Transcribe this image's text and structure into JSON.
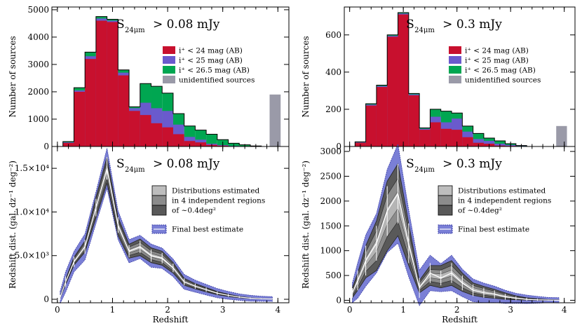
{
  "chart_data": [
    {
      "type": "bar",
      "panel": "top-left",
      "title": "S",
      "title_sub": "24μm",
      "title_rest": "> 0.08 mJy",
      "xlabel": "",
      "ylabel": "Number of sources",
      "xlim": [
        -0.1,
        4.2
      ],
      "ylim": [
        0,
        5100
      ],
      "xticks": [
        0,
        1,
        2,
        3,
        4
      ],
      "yticks": [
        0,
        1000,
        2000,
        3000,
        4000,
        5000
      ],
      "ytick_labels": [
        "0",
        "1000",
        "2000",
        "3000",
        "4000",
        "5000"
      ],
      "bin_edges": [
        0.1,
        0.3,
        0.5,
        0.7,
        0.9,
        1.1,
        1.3,
        1.5,
        1.7,
        1.9,
        2.1,
        2.3,
        2.5,
        2.7,
        2.9,
        3.1,
        3.3,
        3.5,
        3.7
      ],
      "series": [
        {
          "name": "i⁺ < 26.5 mag (AB)",
          "color": "#00a651",
          "values": [
            180,
            2150,
            3450,
            4750,
            4650,
            2800,
            1450,
            2300,
            2200,
            1950,
            1200,
            750,
            600,
            450,
            250,
            120,
            60,
            20
          ]
        },
        {
          "name": "i⁺ < 25 mag (AB)",
          "color": "#6a5acd",
          "values": [
            150,
            2050,
            3300,
            4680,
            4600,
            2700,
            1400,
            1600,
            1400,
            1300,
            800,
            350,
            250,
            100,
            50,
            20,
            10,
            5
          ]
        },
        {
          "name": "i⁺ < 24 mag (AB)",
          "color": "#c8102e",
          "values": [
            130,
            2000,
            3200,
            4600,
            4550,
            2600,
            1300,
            1150,
            850,
            700,
            450,
            200,
            150,
            60,
            30,
            10,
            5,
            0
          ]
        }
      ],
      "unidentified": {
        "name": "unidentified sources",
        "color": "#9a9aa8",
        "x_range": [
          3.85,
          4.05
        ],
        "value": 1900
      },
      "legend_position": "top-right"
    },
    {
      "type": "bar",
      "panel": "top-right",
      "title": "S",
      "title_sub": "24μm",
      "title_rest": "> 0.3 mJy",
      "xlabel": "",
      "ylabel": "Number of sources",
      "xlim": [
        -0.1,
        4.2
      ],
      "ylim": [
        0,
        750
      ],
      "xticks": [
        0,
        1,
        2,
        3,
        4
      ],
      "yticks": [
        0,
        200,
        400,
        600
      ],
      "ytick_labels": [
        "0",
        "200",
        "400",
        "600"
      ],
      "bin_edges": [
        0.1,
        0.3,
        0.5,
        0.7,
        0.9,
        1.1,
        1.3,
        1.5,
        1.7,
        1.9,
        2.1,
        2.3,
        2.5,
        2.7,
        2.9,
        3.1,
        3.3
      ],
      "series": [
        {
          "name": "i⁺ < 26.5 mag (AB)",
          "color": "#00a651",
          "values": [
            25,
            230,
            330,
            600,
            720,
            285,
            100,
            200,
            190,
            180,
            110,
            70,
            45,
            30,
            15,
            5
          ]
        },
        {
          "name": "i⁺ < 25 mag (AB)",
          "color": "#6a5acd",
          "values": [
            22,
            225,
            325,
            595,
            715,
            280,
            95,
            160,
            130,
            150,
            80,
            40,
            30,
            15,
            8,
            3
          ]
        },
        {
          "name": "i⁺ < 24 mag (AB)",
          "color": "#c8102e",
          "values": [
            20,
            220,
            320,
            590,
            710,
            275,
            90,
            130,
            95,
            90,
            50,
            20,
            15,
            5,
            3,
            0
          ]
        }
      ],
      "unidentified": {
        "name": "unidentified sources",
        "color": "#9a9aa8",
        "x_range": [
          3.85,
          4.05
        ],
        "value": 110
      },
      "legend_position": "top-right"
    },
    {
      "type": "area",
      "panel": "bottom-left",
      "title": "S",
      "title_sub": "24μm",
      "title_rest": "> 0.08 mJy",
      "xlabel": "Redshift",
      "ylabel": "Redshift dist. (gal. dz⁻¹ deg⁻²)",
      "xlim": [
        -0.1,
        4.2
      ],
      "ylim": [
        -400,
        17500
      ],
      "xticks": [
        0,
        1,
        2,
        3,
        4
      ],
      "xtick_labels": [
        "0",
        "1",
        "2",
        "3",
        "4"
      ],
      "yticks": [
        0,
        5000,
        10000,
        15000
      ],
      "ytick_labels": [
        "0",
        "5.0×10³",
        "1.0×10⁴",
        "1.5×10⁴"
      ],
      "x": [
        0.05,
        0.15,
        0.3,
        0.5,
        0.7,
        0.9,
        1.1,
        1.3,
        1.5,
        1.7,
        1.9,
        2.1,
        2.3,
        2.5,
        2.7,
        2.9,
        3.1,
        3.3,
        3.5,
        3.7,
        3.9
      ],
      "best_estimate": [
        200,
        2000,
        4300,
        6000,
        10500,
        15000,
        8500,
        5500,
        6000,
        5000,
        4700,
        3600,
        2000,
        1500,
        1100,
        700,
        450,
        250,
        120,
        60,
        30
      ],
      "best_error": [
        300,
        600,
        600,
        800,
        1000,
        1300,
        900,
        700,
        700,
        700,
        600,
        500,
        400,
        300,
        250,
        200,
        150,
        100,
        80,
        50,
        40
      ],
      "region_lower": [
        100,
        1700,
        3900,
        5400,
        9300,
        13300,
        7300,
        4700,
        5000,
        4200,
        3900,
        3000,
        1600,
        1200,
        850,
        520,
        320,
        170,
        80,
        35,
        15
      ],
      "region_upper": [
        350,
        2300,
        4800,
        6700,
        11700,
        16300,
        9400,
        6300,
        6900,
        5900,
        5500,
        4200,
        2400,
        1800,
        1350,
        880,
        580,
        330,
        170,
        90,
        50
      ],
      "legend": [
        "Distributions estimated",
        "in 4 independent regions",
        "of ~0.4deg²",
        "Final best estimate"
      ],
      "legend_position": "right"
    },
    {
      "type": "area",
      "panel": "bottom-right",
      "title": "S",
      "title_sub": "24μm",
      "title_rest": "> 0.3 mJy",
      "xlabel": "Redshift",
      "ylabel": "Redshift dist. (gal. dz⁻¹ deg⁻²)",
      "xlim": [
        -0.1,
        4.2
      ],
      "ylim": [
        -50,
        3100
      ],
      "xticks": [
        0,
        1,
        2,
        3,
        4
      ],
      "xtick_labels": [
        "0",
        "1",
        "2",
        "3",
        "4"
      ],
      "yticks": [
        0,
        500,
        1000,
        1500,
        2000,
        2500,
        3000
      ],
      "ytick_labels": [
        "0",
        "500",
        "1000",
        "1500",
        "2000",
        "2500",
        "3000"
      ],
      "x": [
        0.05,
        0.15,
        0.3,
        0.5,
        0.7,
        0.9,
        1.1,
        1.3,
        1.5,
        1.7,
        1.9,
        2.1,
        2.3,
        2.5,
        2.7,
        2.9,
        3.1,
        3.3,
        3.5,
        3.7,
        3.9
      ],
      "best_estimate": [
        150,
        400,
        800,
        1150,
        1800,
        2150,
        1150,
        250,
        550,
        450,
        550,
        350,
        200,
        150,
        120,
        70,
        40,
        20,
        10,
        5,
        0
      ],
      "best_error": [
        100,
        200,
        300,
        350,
        500,
        600,
        400,
        200,
        200,
        150,
        200,
        150,
        120,
        100,
        80,
        60,
        40,
        30,
        20,
        10,
        10
      ],
      "region_lower": [
        50,
        200,
        450,
        600,
        1000,
        1300,
        700,
        150,
        300,
        250,
        300,
        180,
        100,
        60,
        40,
        20,
        10,
        5,
        0,
        0,
        0
      ],
      "region_upper": [
        250,
        550,
        1100,
        1600,
        2400,
        2750,
        1550,
        400,
        700,
        700,
        800,
        550,
        350,
        280,
        220,
        150,
        90,
        50,
        30,
        15,
        10
      ],
      "legend": [
        "Distributions estimated",
        "in 4 independent regions",
        "of ~0.4deg²",
        "Final best estimate"
      ],
      "legend_position": "right"
    }
  ]
}
